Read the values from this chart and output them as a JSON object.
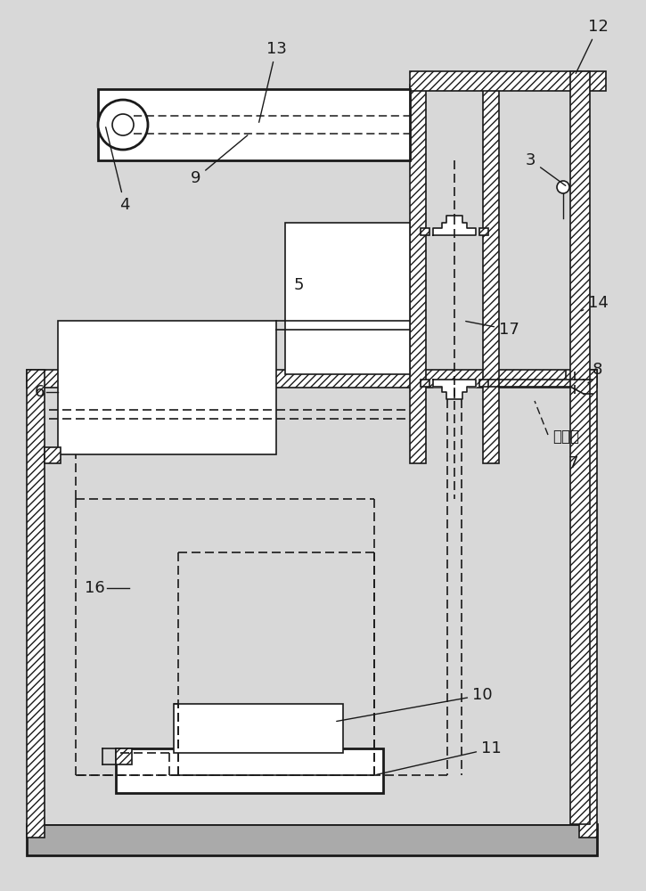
{
  "bg_color": "#d8d8d8",
  "white": "#ffffff",
  "black": "#1a1a1a",
  "gray_fill": "#aaaaaa",
  "font_size": 13,
  "label_font_size": 13
}
